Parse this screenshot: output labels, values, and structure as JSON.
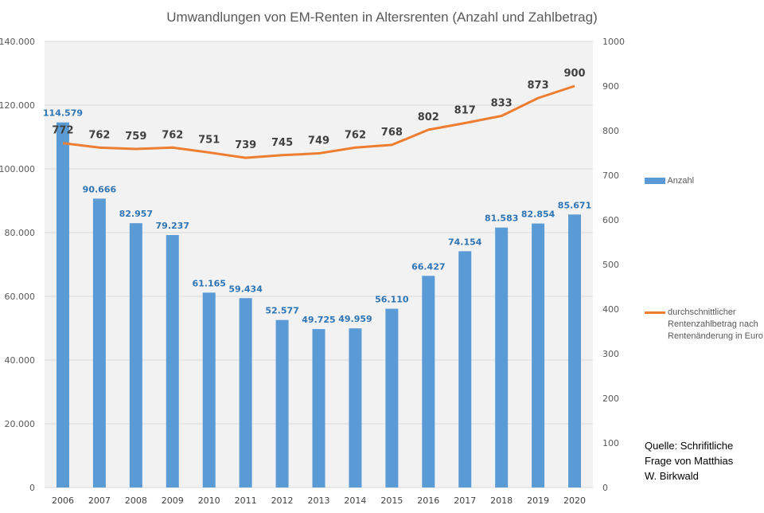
{
  "chart_data": {
    "type": "bar",
    "title": "Umwandlungen von EM-Renten in Altersrenten (Anzahl und Zahlbetrag)",
    "categories": [
      "2006",
      "2007",
      "2008",
      "2009",
      "2010",
      "2011",
      "2012",
      "2013",
      "2014",
      "2015",
      "2016",
      "2017",
      "2018",
      "2019",
      "2020"
    ],
    "series": [
      {
        "name": "Anzahl",
        "type": "bar",
        "axis": "left",
        "color": "#5b9bd5",
        "values": [
          114579,
          90666,
          82957,
          79237,
          61165,
          59434,
          52577,
          49725,
          49959,
          56110,
          66427,
          74154,
          81583,
          82854,
          85671
        ],
        "labels": [
          "114.579",
          "90.666",
          "82.957",
          "79.237",
          "61.165",
          "59.434",
          "52.577",
          "49.725",
          "49.959",
          "56.110",
          "66.427",
          "74.154",
          "81.583",
          "82.854",
          "85.671"
        ]
      },
      {
        "name": "durchschnittlicher Rentenzahlbetrag nach Rentenänderung in Euro",
        "type": "line",
        "axis": "right",
        "color": "#ed7d31",
        "values": [
          772,
          762,
          759,
          762,
          751,
          739,
          745,
          749,
          762,
          768,
          802,
          817,
          833,
          873,
          900
        ]
      }
    ],
    "y_left": {
      "range": [
        0,
        140000
      ],
      "ticks": [
        0,
        20000,
        40000,
        60000,
        80000,
        100000,
        120000,
        140000
      ],
      "tick_labels": [
        "0",
        "20.000",
        "40.000",
        "60.000",
        "80.000",
        "100.000",
        "120.000",
        "140.000"
      ]
    },
    "y_right": {
      "range": [
        0,
        1000
      ],
      "ticks": [
        0,
        100,
        200,
        300,
        400,
        500,
        600,
        700,
        800,
        900,
        1000
      ],
      "tick_labels": [
        "0",
        "100",
        "200",
        "300",
        "400",
        "500",
        "600",
        "700",
        "800",
        "900",
        "1000"
      ]
    },
    "grid": true,
    "legend": {
      "placement": "right",
      "items": [
        "Anzahl",
        "durchschnittlicher Rentenzahlbetrag nach Rentenänderung in Euro"
      ]
    }
  },
  "source": {
    "line1": "Quelle: Schrifitliche",
    "line2": "Frage von Matthias",
    "line3": "W. Birkwald"
  }
}
